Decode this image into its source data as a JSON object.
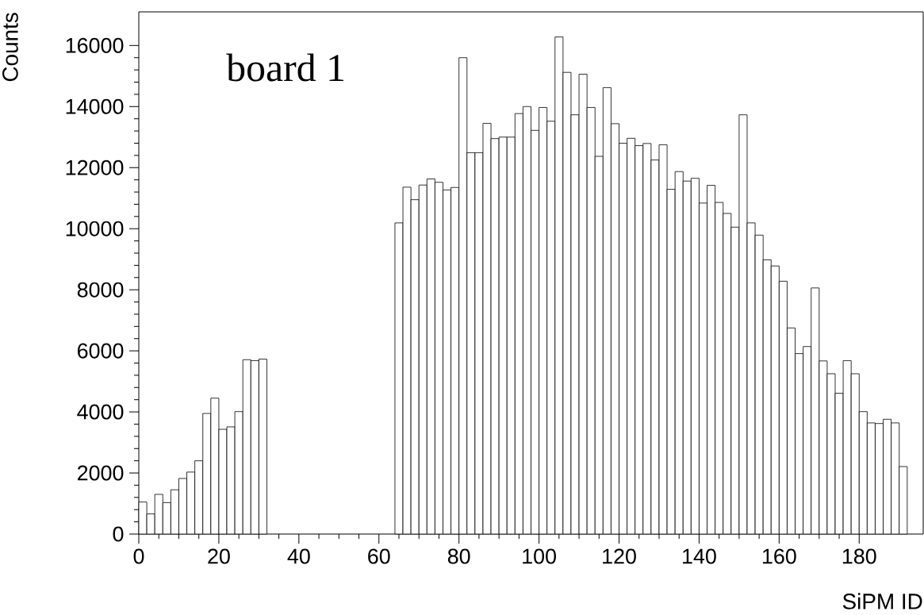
{
  "chart_data": {
    "type": "histogram",
    "xlabel": "SiPM ID",
    "ylabel": "Counts",
    "annotations": [
      "board 1"
    ],
    "color": "#ffffff",
    "bins": [
      0,
      2,
      4,
      6,
      8,
      10,
      12,
      14,
      16,
      18,
      20,
      22,
      24,
      26,
      28,
      30,
      32,
      34,
      36,
      38,
      40,
      42,
      44,
      46,
      48,
      50,
      52,
      54,
      56,
      58,
      60,
      62,
      64,
      66,
      68,
      70,
      72,
      74,
      76,
      78,
      80,
      82,
      84,
      86,
      88,
      90,
      92,
      94,
      96,
      98,
      100,
      102,
      104,
      106,
      108,
      110,
      112,
      114,
      116,
      118,
      120,
      122,
      124,
      126,
      128,
      130,
      132,
      134,
      136,
      138,
      140,
      142,
      144,
      146,
      148,
      150,
      152,
      154,
      156,
      158,
      160,
      162,
      164,
      166,
      168,
      170,
      172,
      174,
      176,
      178,
      180,
      182,
      184,
      186,
      188,
      190,
      192
    ],
    "values": [
      1050,
      660,
      1300,
      1030,
      1450,
      1820,
      2030,
      2400,
      3950,
      4450,
      3430,
      3510,
      4010,
      5710,
      5680,
      5730,
      0,
      0,
      0,
      0,
      0,
      0,
      0,
      0,
      0,
      0,
      0,
      0,
      0,
      0,
      0,
      0,
      10190,
      11360,
      10950,
      11430,
      11630,
      11520,
      11270,
      11350,
      15600,
      12490,
      12490,
      13450,
      12950,
      13000,
      13000,
      13770,
      14000,
      13220,
      13970,
      13520,
      16280,
      15120,
      13730,
      15060,
      13970,
      12370,
      14620,
      13440,
      12800,
      12960,
      12720,
      12790,
      12250,
      12750,
      11290,
      11870,
      11560,
      11650,
      10840,
      11420,
      10860,
      10500,
      10050,
      13730,
      10190,
      9790,
      8980,
      8780,
      8280,
      6750,
      5910,
      6140,
      8060,
      5670,
      5250,
      4610,
      5680,
      5250,
      4010,
      3640,
      3620,
      3760,
      3640,
      2210
    ],
    "xlim": [
      0,
      196
    ],
    "ylim": [
      0,
      17100
    ],
    "xticks": [
      0,
      20,
      40,
      60,
      80,
      100,
      120,
      140,
      160,
      180
    ],
    "yticks": [
      0,
      2000,
      4000,
      6000,
      8000,
      10000,
      12000,
      14000,
      16000
    ]
  }
}
